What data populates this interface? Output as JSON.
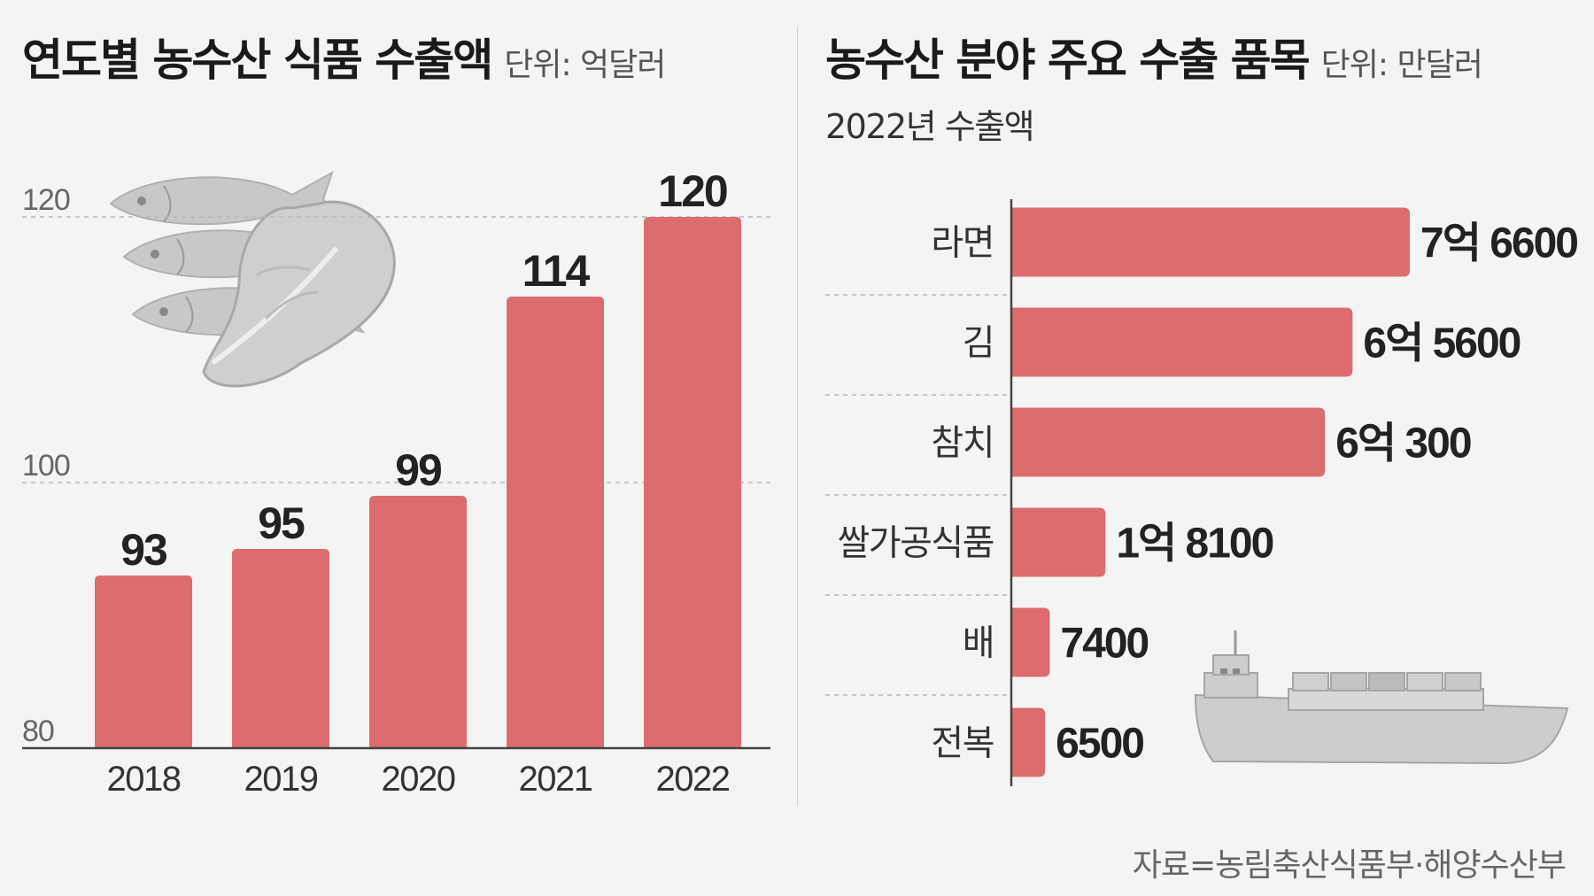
{
  "left": {
    "title": "연도별 농수산 식품 수출액",
    "unit": "단위: 억달러"
  },
  "right": {
    "title": "농수산 분야 주요 수출 품목",
    "unit": "단위: 만달러",
    "subtitle": "2022년 수출액"
  },
  "source": "자료=농림축산식품부·해양수산부",
  "colors": {
    "bar": "#dd6c6e",
    "axis": "#444444",
    "grid": "#b8b8b8",
    "illustration": "#c8c8c8"
  },
  "icons": [
    "fish-icon",
    "cabbage-icon",
    "cargo-ship-icon"
  ],
  "chart_data": [
    {
      "type": "bar",
      "title": "연도별 농수산 식품 수출액",
      "unit": "억달러",
      "categories": [
        "2018",
        "2019",
        "2020",
        "2021",
        "2022"
      ],
      "values": [
        93,
        95,
        99,
        114,
        120
      ],
      "value_labels": [
        "93",
        "95",
        "99",
        "114",
        "120"
      ],
      "ylim": [
        80,
        120
      ],
      "yticks": [
        80,
        100,
        120
      ],
      "grid": true
    },
    {
      "type": "bar",
      "orientation": "horizontal",
      "title": "농수산 분야 주요 수출 품목",
      "subtitle": "2022년 수출액",
      "unit": "만달러",
      "categories": [
        "라면",
        "김",
        "참치",
        "쌀가공식품",
        "배",
        "전복"
      ],
      "values": [
        76600,
        65600,
        60300,
        18100,
        7400,
        6500
      ],
      "value_labels": [
        "7억 6600",
        "6억 5600",
        "6억 300",
        "1억 8100",
        "7400",
        "6500"
      ]
    }
  ]
}
